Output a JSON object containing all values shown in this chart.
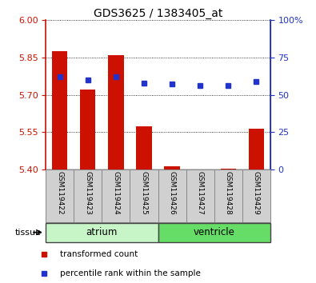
{
  "title": "GDS3625 / 1383405_at",
  "samples": [
    "GSM119422",
    "GSM119423",
    "GSM119424",
    "GSM119425",
    "GSM119426",
    "GSM119427",
    "GSM119428",
    "GSM119429"
  ],
  "transformed_count": [
    5.875,
    5.72,
    5.86,
    5.575,
    5.415,
    5.4,
    5.405,
    5.565
  ],
  "percentile_rank": [
    62,
    60,
    62,
    58,
    57,
    56,
    56,
    59
  ],
  "ylim_left": [
    5.4,
    6.0
  ],
  "ylim_right": [
    0,
    100
  ],
  "yticks_left": [
    5.4,
    5.55,
    5.7,
    5.85,
    6.0
  ],
  "yticks_right": [
    0,
    25,
    50,
    75,
    100
  ],
  "tissue_groups": [
    {
      "label": "atrium",
      "samples": [
        0,
        1,
        2,
        3
      ],
      "color": "#c8f5c8"
    },
    {
      "label": "ventricle",
      "samples": [
        4,
        5,
        6,
        7
      ],
      "color": "#66dd66"
    }
  ],
  "bar_color": "#cc1100",
  "dot_color": "#2233cc",
  "bar_bottom": 5.4,
  "tick_color_left": "#cc1100",
  "tick_color_right": "#2233cc",
  "legend_items": [
    {
      "label": "transformed count",
      "color": "#cc1100"
    },
    {
      "label": "percentile rank within the sample",
      "color": "#2233cc"
    }
  ]
}
